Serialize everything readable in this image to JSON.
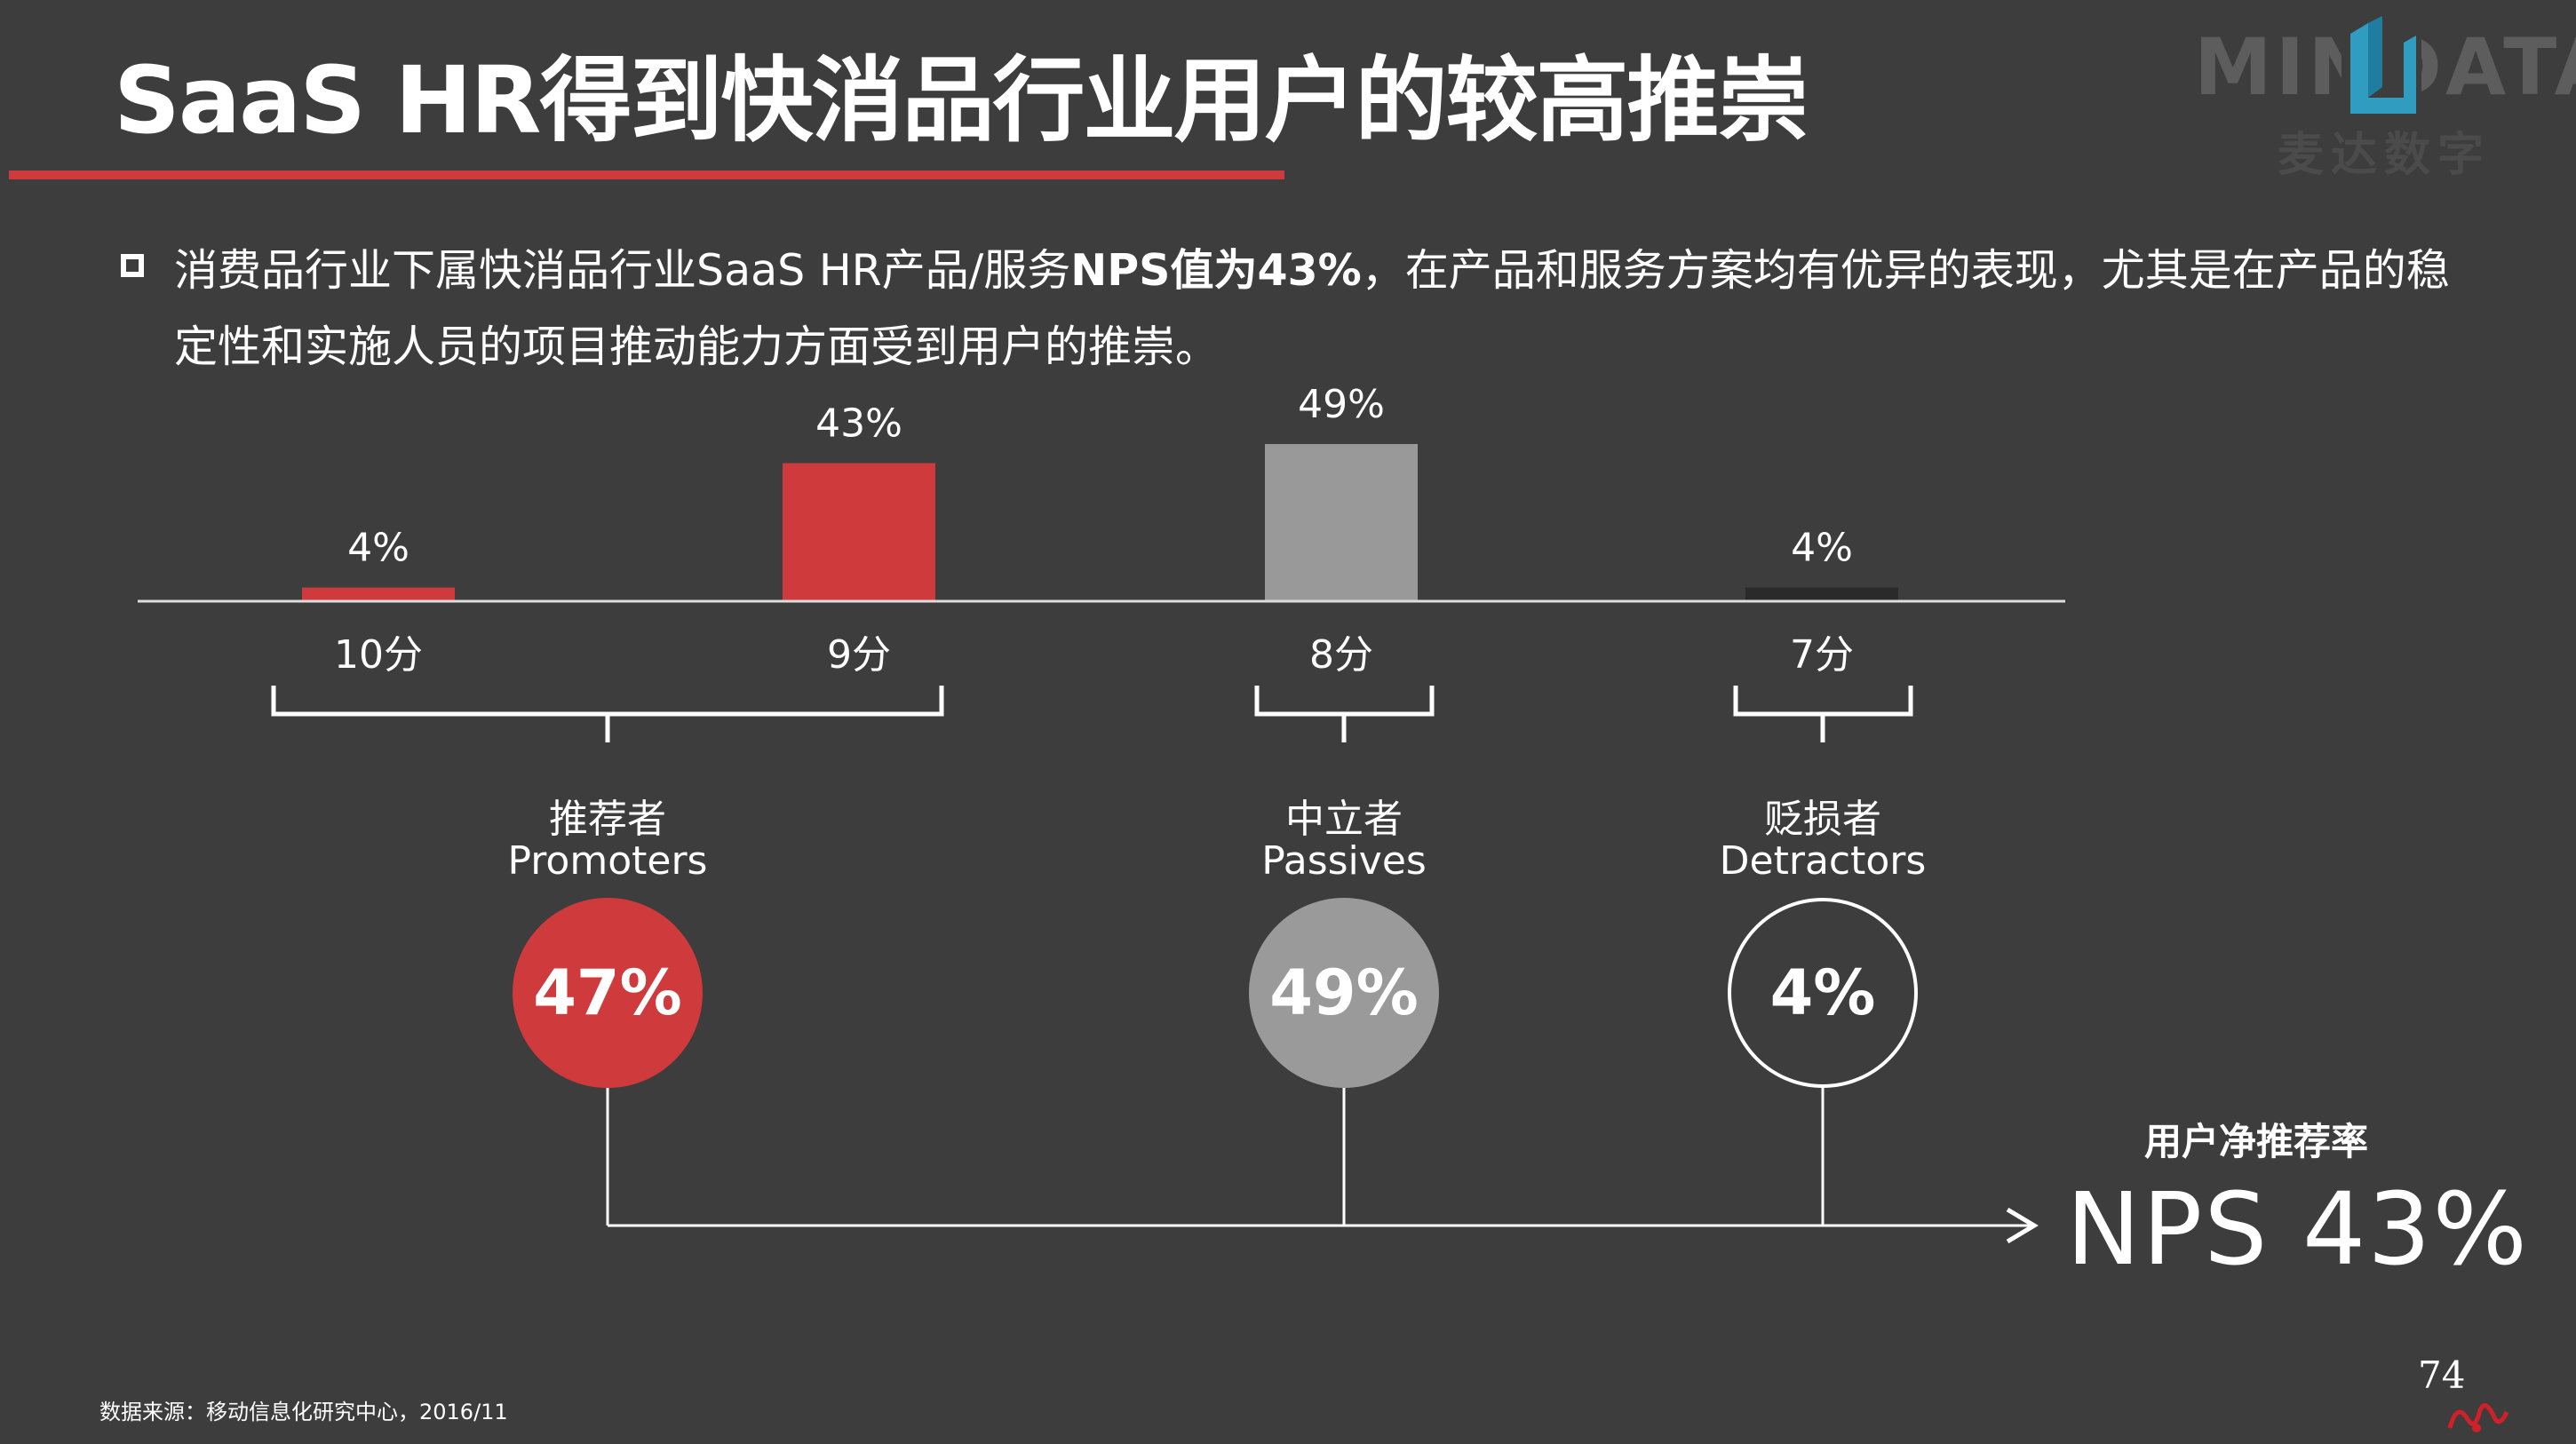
{
  "header": {
    "title": "SaaS HR得到快消品行业用户的较高推崇",
    "logo_text": "MINDATA",
    "logo_sub": "麦达数字"
  },
  "description": {
    "part1": "消费品行业下属快消品行业SaaS HR产品/服务",
    "highlight": "NPS值为43%",
    "part2": "，在产品和服务方案均有优异的表现，尤其是在产品的稳定性和实施人员的项目推动能力方面受到用户的推崇。"
  },
  "chart_data": {
    "type": "bar",
    "categories": [
      "10分",
      "9分",
      "8分",
      "7分"
    ],
    "values": [
      4,
      43,
      49,
      4
    ],
    "value_labels": [
      "4%",
      "43%",
      "49%",
      "4%"
    ],
    "colors": [
      "#cf3a3d",
      "#cf3a3d",
      "#999999",
      "#2a2a2a"
    ],
    "title": "",
    "xlabel": "",
    "ylabel": "",
    "ylim": [
      0,
      49
    ],
    "grid": false
  },
  "groups": [
    {
      "cn": "推荐者",
      "en": "Promoters",
      "value": "47%",
      "color": "#cf3a3d"
    },
    {
      "cn": "中立者",
      "en": "Passives",
      "value": "49%",
      "color": "#9a9a9a"
    },
    {
      "cn": "贬损者",
      "en": "Detractors",
      "value": "4%",
      "color": "#3d3d3d"
    }
  ],
  "nps": {
    "label": "用户净推荐率",
    "value": "NPS  43%"
  },
  "footer": {
    "source": "数据来源：移动信息化研究中心，2016/11",
    "page": "74"
  }
}
